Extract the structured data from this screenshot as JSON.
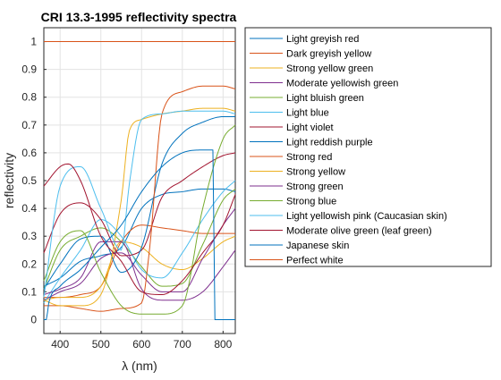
{
  "chart_data": {
    "type": "line",
    "title": "CRI 13.3-1995 reflectivity spectra",
    "xlabel": "λ (nm)",
    "ylabel": "reflectivity",
    "xlim": [
      360,
      830
    ],
    "ylim": [
      -0.05,
      1.05
    ],
    "xticks": [
      400,
      500,
      600,
      700,
      800
    ],
    "yticks": [
      0,
      0.1,
      0.2,
      0.3,
      0.4,
      0.5,
      0.6,
      0.7,
      0.8,
      0.9,
      1
    ],
    "ytick_labels": [
      "0",
      "0.1",
      "0.2",
      "0.3",
      "0.4",
      "0.5",
      "0.6",
      "0.7",
      "0.8",
      "0.9",
      "1"
    ],
    "grid": true,
    "legend_position": "outside-right",
    "series": [
      {
        "name": "Light greyish red",
        "color": "#0072BD",
        "x": [
          360,
          400,
          450,
          500,
          550,
          600,
          650,
          700,
          750,
          800,
          830
        ],
        "y": [
          0.12,
          0.15,
          0.21,
          0.23,
          0.26,
          0.4,
          0.45,
          0.46,
          0.47,
          0.47,
          0.46
        ]
      },
      {
        "name": "Dark greyish yellow",
        "color": "#D95319",
        "x": [
          360,
          400,
          450,
          500,
          550,
          600,
          650,
          700,
          750,
          800,
          830
        ],
        "y": [
          0.08,
          0.08,
          0.09,
          0.12,
          0.28,
          0.34,
          0.33,
          0.32,
          0.31,
          0.31,
          0.31
        ]
      },
      {
        "name": "Strong yellow green",
        "color": "#EDB120",
        "x": [
          360,
          400,
          450,
          500,
          550,
          600,
          650,
          700,
          750,
          800,
          830
        ],
        "y": [
          0.07,
          0.08,
          0.08,
          0.12,
          0.28,
          0.26,
          0.2,
          0.18,
          0.22,
          0.28,
          0.3
        ]
      },
      {
        "name": "Moderate yellowish green",
        "color": "#7E2F8E",
        "x": [
          360,
          400,
          450,
          500,
          550,
          600,
          650,
          700,
          750,
          800,
          830
        ],
        "y": [
          0.07,
          0.1,
          0.13,
          0.22,
          0.24,
          0.16,
          0.1,
          0.1,
          0.22,
          0.34,
          0.4
        ]
      },
      {
        "name": "Light bluish green",
        "color": "#77AC30",
        "x": [
          360,
          400,
          450,
          500,
          550,
          600,
          650,
          700,
          750,
          800,
          830
        ],
        "y": [
          0.11,
          0.25,
          0.3,
          0.33,
          0.28,
          0.19,
          0.12,
          0.13,
          0.27,
          0.43,
          0.47
        ]
      },
      {
        "name": "Light blue",
        "color": "#4DBEEE",
        "x": [
          360,
          400,
          450,
          500,
          550,
          600,
          650,
          700,
          750,
          800,
          830
        ],
        "y": [
          0.06,
          0.15,
          0.25,
          0.36,
          0.3,
          0.18,
          0.15,
          0.24,
          0.36,
          0.46,
          0.5
        ]
      },
      {
        "name": "Light violet",
        "color": "#A2142F",
        "x": [
          360,
          400,
          450,
          500,
          550,
          600,
          650,
          700,
          750,
          800,
          830
        ],
        "y": [
          0.24,
          0.38,
          0.42,
          0.36,
          0.23,
          0.25,
          0.44,
          0.5,
          0.55,
          0.59,
          0.6
        ]
      },
      {
        "name": "Light reddish purple",
        "color": "#0072BD",
        "x": [
          360,
          400,
          450,
          500,
          550,
          600,
          650,
          700,
          750,
          800,
          830
        ],
        "y": [
          0.11,
          0.2,
          0.29,
          0.3,
          0.17,
          0.26,
          0.56,
          0.67,
          0.71,
          0.73,
          0.73
        ]
      },
      {
        "name": "Strong red",
        "color": "#D95319",
        "x": [
          360,
          400,
          450,
          500,
          550,
          600,
          620,
          650,
          700,
          750,
          800,
          830
        ],
        "y": [
          0.05,
          0.05,
          0.04,
          0.03,
          0.04,
          0.06,
          0.26,
          0.74,
          0.82,
          0.84,
          0.84,
          0.83
        ]
      },
      {
        "name": "Strong yellow",
        "color": "#EDB120",
        "x": [
          360,
          400,
          450,
          500,
          550,
          570,
          600,
          650,
          700,
          750,
          800,
          830
        ],
        "y": [
          0.07,
          0.05,
          0.05,
          0.09,
          0.43,
          0.68,
          0.72,
          0.74,
          0.75,
          0.76,
          0.76,
          0.75
        ]
      },
      {
        "name": "Strong green",
        "color": "#7E2F8E",
        "x": [
          360,
          400,
          450,
          500,
          550,
          600,
          650,
          700,
          750,
          800,
          830
        ],
        "y": [
          0.09,
          0.11,
          0.15,
          0.28,
          0.28,
          0.11,
          0.07,
          0.07,
          0.1,
          0.19,
          0.25
        ]
      },
      {
        "name": "Strong blue",
        "color": "#77AC30",
        "x": [
          360,
          400,
          450,
          500,
          550,
          600,
          650,
          700,
          750,
          800,
          830
        ],
        "y": [
          0.14,
          0.28,
          0.32,
          0.17,
          0.05,
          0.02,
          0.02,
          0.05,
          0.4,
          0.65,
          0.7
        ]
      },
      {
        "name": "Light yellowish pink (Caucasian skin)",
        "color": "#4DBEEE",
        "x": [
          360,
          400,
          450,
          500,
          550,
          570,
          600,
          650,
          700,
          750,
          800,
          830
        ],
        "y": [
          0.08,
          0.48,
          0.55,
          0.4,
          0.25,
          0.49,
          0.72,
          0.74,
          0.75,
          0.75,
          0.75,
          0.74
        ]
      },
      {
        "name": "Moderate olive green (leaf green)",
        "color": "#A2142F",
        "x": [
          360,
          400,
          420,
          450,
          500,
          550,
          600,
          650,
          700,
          750,
          800,
          830
        ],
        "y": [
          0.48,
          0.55,
          0.56,
          0.5,
          0.3,
          0.21,
          0.1,
          0.09,
          0.14,
          0.24,
          0.34,
          0.45
        ]
      },
      {
        "name": "Japanese skin",
        "color": "#0072BD",
        "x": [
          360,
          366,
          372,
          400,
          450,
          500,
          550,
          600,
          650,
          700,
          750,
          775,
          780,
          800,
          830
        ],
        "y": [
          0.0,
          0.0,
          0.06,
          0.12,
          0.18,
          0.26,
          0.34,
          0.46,
          0.55,
          0.6,
          0.61,
          0.61,
          0.0,
          0.0,
          0.0
        ]
      },
      {
        "name": "Perfect white",
        "color": "#D95319",
        "x": [
          360,
          830
        ],
        "y": [
          1,
          1
        ]
      }
    ]
  }
}
